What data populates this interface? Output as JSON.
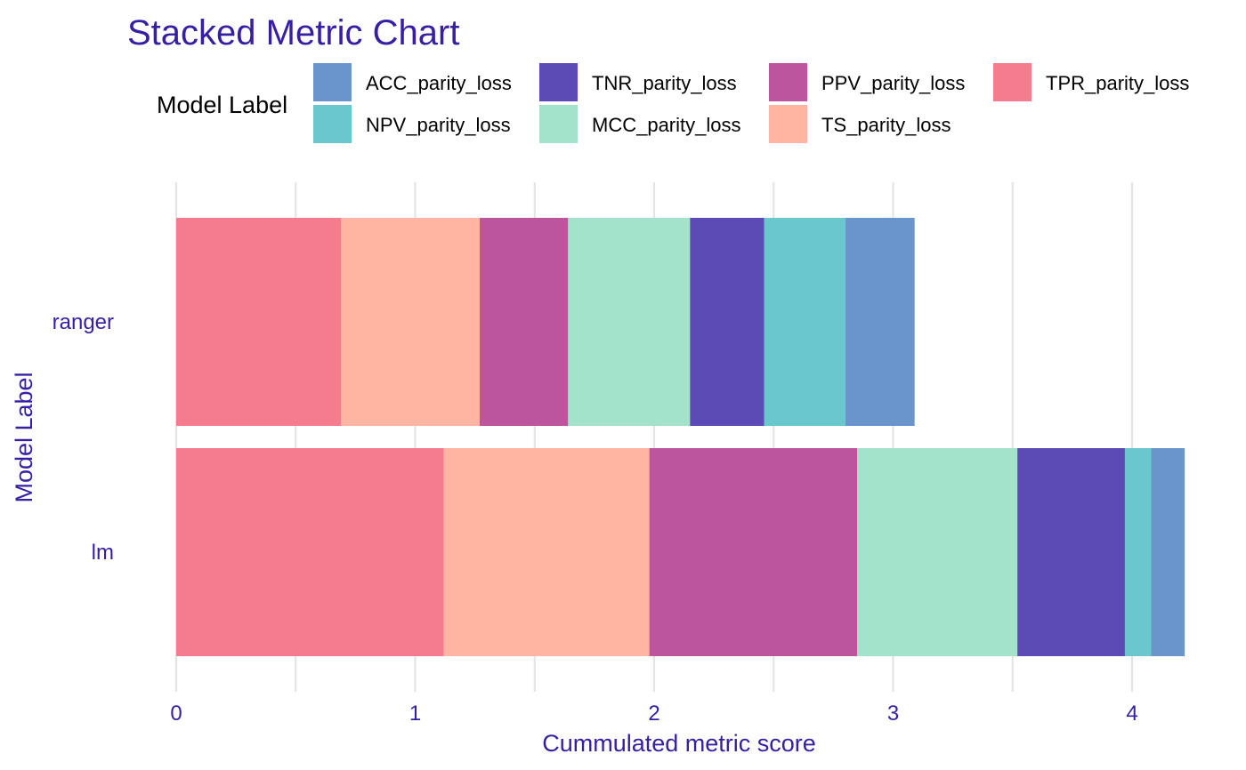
{
  "chart_data": {
    "type": "bar",
    "orientation": "horizontal",
    "stacked": true,
    "title": "Stacked Metric Chart",
    "xlabel": "Cummulated metric score",
    "ylabel": "Model Label",
    "xlim": [
      0,
      4.2
    ],
    "x_ticks": [
      "0",
      "1",
      "2",
      "3",
      "4"
    ],
    "grid": true,
    "legend": {
      "title": "Model Label",
      "position": "top",
      "entries": [
        "ACC_parity_loss",
        "TNR_parity_loss",
        "PPV_parity_loss",
        "TPR_parity_loss",
        "NPV_parity_loss",
        "MCC_parity_loss",
        "TS_parity_loss"
      ]
    },
    "categories": [
      "ranger",
      "lm"
    ],
    "series": [
      {
        "name": "TPR_parity_loss",
        "color": "#F47C8E",
        "values": [
          0.69,
          1.12
        ]
      },
      {
        "name": "TS_parity_loss",
        "color": "#FFB5A1",
        "values": [
          0.58,
          0.86
        ]
      },
      {
        "name": "PPV_parity_loss",
        "color": "#BD559E",
        "values": [
          0.37,
          0.87
        ]
      },
      {
        "name": "MCC_parity_loss",
        "color": "#A4E3CB",
        "values": [
          0.51,
          0.67
        ]
      },
      {
        "name": "TNR_parity_loss",
        "color": "#5D4BB5",
        "values": [
          0.31,
          0.45
        ]
      },
      {
        "name": "NPV_parity_loss",
        "color": "#6AC7CD",
        "values": [
          0.34,
          0.11
        ]
      },
      {
        "name": "ACC_parity_loss",
        "color": "#6A94CC",
        "values": [
          0.29,
          0.14
        ]
      }
    ]
  }
}
